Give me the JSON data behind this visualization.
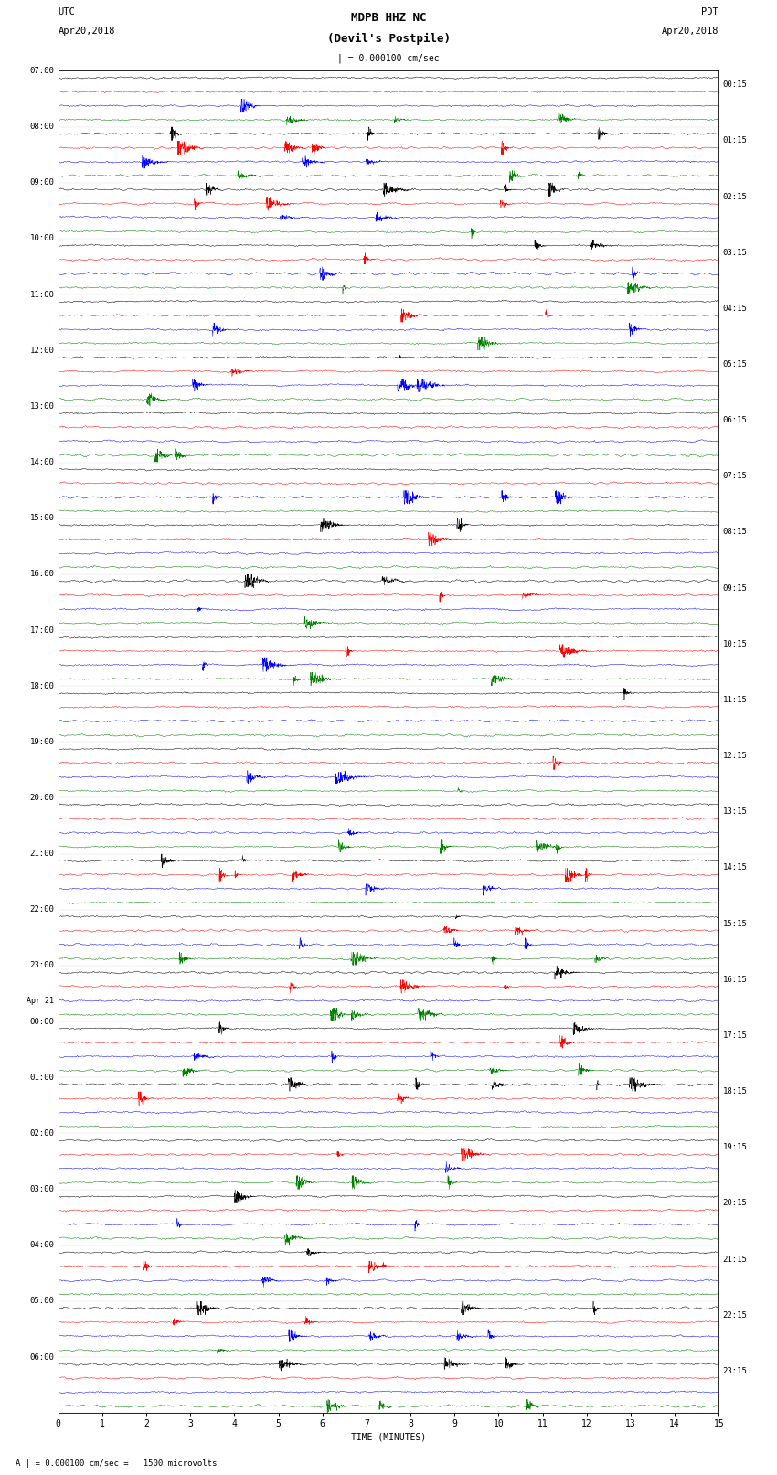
{
  "title_line1": "MDPB HHZ NC",
  "title_line2": "(Devil's Postpile)",
  "scale_label": "| = 0.000100 cm/sec",
  "left_label_top": "UTC",
  "left_label_date": "Apr20,2018",
  "right_label_top": "PDT",
  "right_label_date": "Apr20,2018",
  "xlabel": "TIME (MINUTES)",
  "footer": "A | = 0.000100 cm/sec =   1500 microvolts",
  "left_times": [
    "07:00",
    "08:00",
    "09:00",
    "10:00",
    "11:00",
    "12:00",
    "13:00",
    "14:00",
    "15:00",
    "16:00",
    "17:00",
    "18:00",
    "19:00",
    "20:00",
    "21:00",
    "22:00",
    "23:00",
    "Apr 21",
    "00:00",
    "01:00",
    "02:00",
    "03:00",
    "04:00",
    "05:00",
    "06:00"
  ],
  "right_times": [
    "00:15",
    "01:15",
    "02:15",
    "03:15",
    "04:15",
    "05:15",
    "06:15",
    "07:15",
    "08:15",
    "09:15",
    "10:15",
    "11:15",
    "12:15",
    "13:15",
    "14:15",
    "15:15",
    "16:15",
    "17:15",
    "18:15",
    "19:15",
    "20:15",
    "21:15",
    "22:15",
    "23:15"
  ],
  "colors": [
    "black",
    "red",
    "blue",
    "green"
  ],
  "num_rows": 24,
  "traces_per_row": 4,
  "minutes": 15,
  "fig_width": 8.5,
  "fig_height": 16.13,
  "dpi": 100,
  "bg_color": "white",
  "trace_lw": 0.35
}
